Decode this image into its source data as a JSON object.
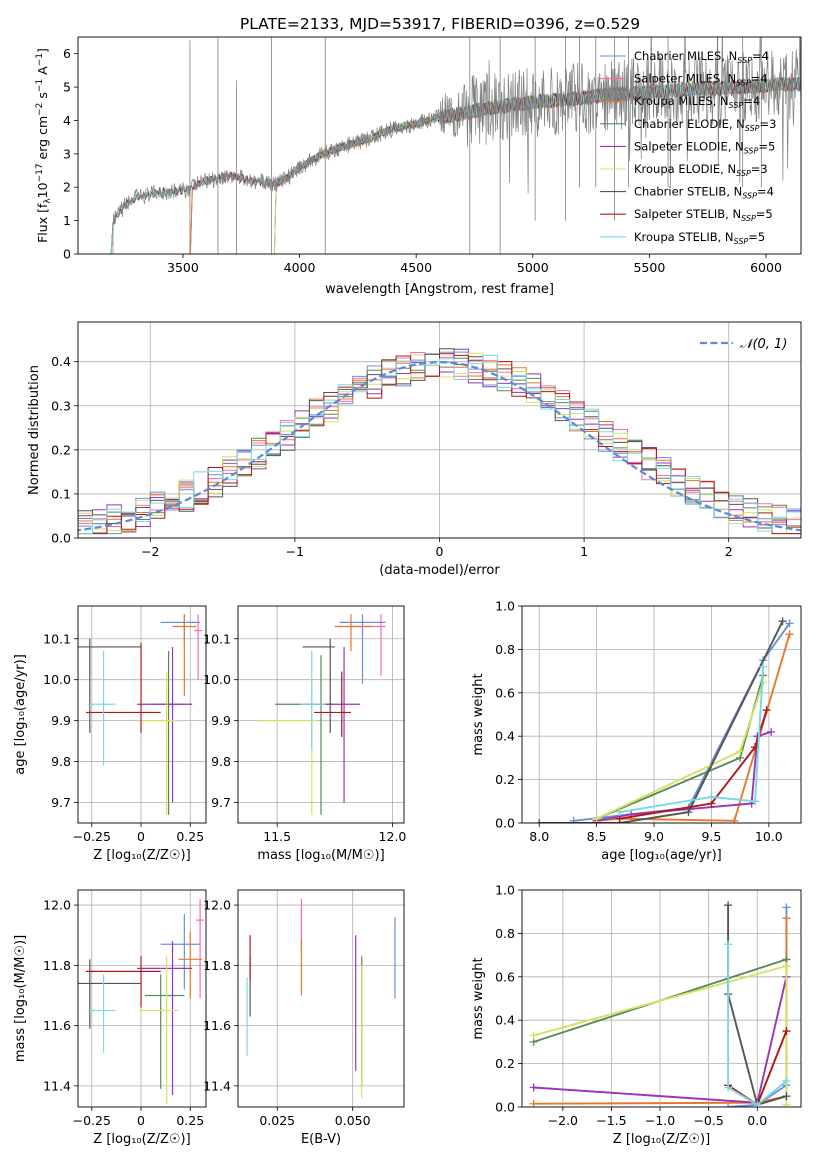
{
  "title": "PLATE=2133, MJD=53917, FIBERID=0396, z=0.529",
  "colors": {
    "Chabrier MILES": "#6a8fdc",
    "Salpeter MILES": "#ff69b4",
    "Kroupa MILES": "#e5782c",
    "Chabrier ELODIE": "#5a8a5a",
    "Salpeter ELODIE": "#9a35b8",
    "Kroupa ELODIE": "#d8e060",
    "Chabrier STELIB": "#555555",
    "Salpeter STELIB": "#b01818",
    "Kroupa STELIB": "#78d8e0",
    "data": "#808080",
    "normal": "#5a8ad8"
  },
  "chart_data": [
    {
      "id": "spectrum",
      "type": "line",
      "xlabel": "wavelength [Angstrom, rest frame]",
      "ylabel_parts": [
        "Flux [f",
        "λ",
        "10",
        "−17",
        " erg cm",
        "−2",
        " s",
        "−1",
        " A",
        "−1",
        "]"
      ],
      "xlim": [
        3050,
        6150
      ],
      "ylim": [
        0,
        6.5
      ],
      "xticks": [
        3500,
        4000,
        4500,
        5000,
        5500,
        6000
      ],
      "yticks": [
        0,
        1,
        2,
        3,
        4,
        5,
        6
      ],
      "legend_position": "upper right",
      "legend": [
        {
          "name": "Chabrier MILES",
          "n": 4
        },
        {
          "name": "Salpeter MILES",
          "n": 4
        },
        {
          "name": "Kroupa MILES",
          "n": 4
        },
        {
          "name": "Chabrier ELODIE",
          "n": 3
        },
        {
          "name": "Salpeter ELODIE",
          "n": 5
        },
        {
          "name": "Kroupa ELODIE",
          "n": 3
        },
        {
          "name": "Chabrier STELIB",
          "n": 4
        },
        {
          "name": "Salpeter STELIB",
          "n": 5
        },
        {
          "name": "Kroupa STELIB",
          "n": 5
        }
      ],
      "nssp_label": "N",
      "nssp_sub": "SSP",
      "model_starts": {
        "MILES": 3540,
        "ELODIE": 3900,
        "STELIB": 3200
      },
      "continuum": [
        [
          3200,
          0.95
        ],
        [
          3250,
          1.45
        ],
        [
          3300,
          1.7
        ],
        [
          3400,
          1.85
        ],
        [
          3500,
          1.9
        ],
        [
          3600,
          2.2
        ],
        [
          3700,
          2.35
        ],
        [
          3800,
          2.2
        ],
        [
          3900,
          2.1
        ],
        [
          3950,
          2.3
        ],
        [
          4000,
          2.6
        ],
        [
          4100,
          3.0
        ],
        [
          4200,
          3.25
        ],
        [
          4300,
          3.45
        ],
        [
          4400,
          3.75
        ],
        [
          4500,
          3.9
        ],
        [
          4600,
          4.1
        ],
        [
          4700,
          4.2
        ],
        [
          4800,
          4.35
        ],
        [
          4900,
          4.45
        ],
        [
          5000,
          4.55
        ],
        [
          5100,
          4.6
        ],
        [
          5200,
          4.65
        ],
        [
          5300,
          4.75
        ],
        [
          5400,
          4.8
        ],
        [
          5500,
          4.85
        ],
        [
          5600,
          4.9
        ],
        [
          5700,
          4.95
        ],
        [
          5800,
          4.95
        ],
        [
          5900,
          5.0
        ],
        [
          6000,
          5.05
        ],
        [
          6100,
          5.1
        ]
      ]
    },
    {
      "id": "residuals",
      "type": "histogram",
      "xlabel": "(data-model)/error",
      "ylabel": "Normed distribution",
      "xlim": [
        -2.5,
        2.5
      ],
      "ylim": [
        0,
        0.49
      ],
      "xticks": [
        -2,
        -1,
        0,
        1,
        2
      ],
      "yticks": [
        0.0,
        0.1,
        0.2,
        0.3,
        0.4
      ],
      "bin_width": 0.1,
      "legend_position": "upper right",
      "legend_label": "𝒩(0, 1)"
    },
    {
      "id": "age_vs_Z",
      "type": "scatter",
      "xlabel": "Z [log₁₀(Z/Z☉)]",
      "ylabel": "age  [log₁₀(age/yr)]",
      "xlim": [
        -0.32,
        0.33
      ],
      "ylim": [
        9.65,
        10.18
      ],
      "xticks": [
        -0.25,
        0.0,
        0.25
      ],
      "yticks": [
        9.7,
        9.8,
        9.9,
        10.0,
        10.1
      ],
      "points": [
        {
          "model": "Chabrier MILES",
          "x": 0.22,
          "y": 10.14,
          "xerr": [
            0.12,
            0.08
          ],
          "yerr": [
            0.05,
            0.02
          ]
        },
        {
          "model": "Salpeter MILES",
          "x": 0.29,
          "y": 10.12,
          "xerr": [
            0.02,
            0.02
          ],
          "yerr": [
            0.12,
            0.04
          ]
        },
        {
          "model": "Kroupa MILES",
          "x": 0.22,
          "y": 10.13,
          "xerr": [
            0.06,
            0.06
          ],
          "yerr": [
            0.17,
            0.03
          ]
        },
        {
          "model": "Chabrier ELODIE",
          "x": 0.14,
          "y": 9.94,
          "xerr": [
            0.08,
            0.08
          ],
          "yerr": [
            0.27,
            0.13
          ]
        },
        {
          "model": "Salpeter ELODIE",
          "x": 0.16,
          "y": 9.94,
          "xerr": [
            0.18,
            0.1
          ],
          "yerr": [
            0.24,
            0.14
          ]
        },
        {
          "model": "Kroupa ELODIE",
          "x": 0.13,
          "y": 9.9,
          "xerr": [
            0.14,
            0.06
          ],
          "yerr": [
            0.23,
            0.12
          ]
        },
        {
          "model": "Chabrier STELIB",
          "x": -0.26,
          "y": 10.08,
          "xerr": [
            0.1,
            0.26
          ],
          "yerr": [
            0.21,
            0.02
          ]
        },
        {
          "model": "Salpeter STELIB",
          "x": 0.0,
          "y": 9.92,
          "xerr": [
            0.28,
            0.1
          ],
          "yerr": [
            0.05,
            0.17
          ]
        },
        {
          "model": "Kroupa STELIB",
          "x": -0.19,
          "y": 9.94,
          "xerr": [
            0.08,
            0.06
          ],
          "yerr": [
            0.15,
            0.13
          ]
        }
      ]
    },
    {
      "id": "age_vs_mass",
      "type": "scatter",
      "xlabel": "mass [log₁₀(M/M☉)]",
      "ylabel": "",
      "xlim": [
        11.33,
        12.05
      ],
      "ylim": [
        9.65,
        10.18
      ],
      "xticks": [
        11.5,
        12.0
      ],
      "yticks": [
        9.7,
        9.8,
        9.9,
        10.0,
        10.1
      ],
      "points": [
        {
          "model": "Chabrier MILES",
          "x": 11.87,
          "y": 10.14,
          "xerr": [
            0.1,
            0.1
          ],
          "yerr": [
            0.15,
            0.02
          ]
        },
        {
          "model": "Salpeter MILES",
          "x": 11.95,
          "y": 10.13,
          "xerr": [
            0.13,
            0.02
          ],
          "yerr": [
            0.12,
            0.03
          ]
        },
        {
          "model": "Kroupa MILES",
          "x": 11.82,
          "y": 10.13,
          "xerr": [
            0.07,
            0.09
          ],
          "yerr": [
            0.06,
            0.03
          ]
        },
        {
          "model": "Chabrier ELODIE",
          "x": 11.69,
          "y": 9.94,
          "xerr": [
            0.2,
            0.05
          ],
          "yerr": [
            0.27,
            0.12
          ]
        },
        {
          "model": "Salpeter ELODIE",
          "x": 11.79,
          "y": 9.94,
          "xerr": [
            0.17,
            0.07
          ],
          "yerr": [
            0.24,
            0.14
          ]
        },
        {
          "model": "Kroupa ELODIE",
          "x": 11.65,
          "y": 9.9,
          "xerr": [
            0.23,
            0.02
          ],
          "yerr": [
            0.23,
            0.1
          ]
        },
        {
          "model": "Chabrier STELIB",
          "x": 11.73,
          "y": 10.08,
          "xerr": [
            0.12,
            0.02
          ],
          "yerr": [
            0.21,
            0.02
          ]
        },
        {
          "model": "Salpeter STELIB",
          "x": 11.78,
          "y": 9.92,
          "xerr": [
            0.12,
            0.04
          ],
          "yerr": [
            0.06,
            0.1
          ]
        },
        {
          "model": "Kroupa STELIB",
          "x": 11.65,
          "y": 9.94,
          "xerr": [
            0.05,
            0.06
          ],
          "yerr": [
            0.11,
            0.13
          ]
        }
      ]
    },
    {
      "id": "mass_weight_vs_age",
      "type": "line",
      "xlabel": "age  [log₁₀(age/yr)]",
      "ylabel": "mass weight",
      "xlim": [
        7.85,
        10.28
      ],
      "ylim": [
        0,
        1.0
      ],
      "xticks": [
        8.0,
        8.5,
        9.0,
        9.5,
        10.0
      ],
      "yticks": [
        0.0,
        0.2,
        0.4,
        0.6,
        0.8,
        1.0
      ],
      "series": [
        {
          "model": "Chabrier MILES",
          "x": [
            8.3,
            9.3,
            9.95,
            10.18
          ],
          "y": [
            0.01,
            0.07,
            0.75,
            0.92
          ]
        },
        {
          "model": "Kroupa MILES",
          "x": [
            8.5,
            8.7,
            9.7,
            10.18
          ],
          "y": [
            0.01,
            0.02,
            0.01,
            0.87
          ]
        },
        {
          "model": "Chabrier ELODIE",
          "x": [
            8.5,
            9.75,
            9.95
          ],
          "y": [
            0.02,
            0.3,
            0.68
          ]
        },
        {
          "model": "Salpeter ELODIE",
          "x": [
            8.5,
            8.8,
            9.85,
            9.9,
            10.02
          ],
          "y": [
            0.01,
            0.04,
            0.09,
            0.4,
            0.42
          ]
        },
        {
          "model": "Kroupa ELODIE",
          "x": [
            8.5,
            9.75,
            9.95
          ],
          "y": [
            0.02,
            0.33,
            0.65
          ]
        },
        {
          "model": "Chabrier STELIB",
          "x": [
            8.0,
            8.7,
            9.3,
            10.12
          ],
          "y": [
            0.0,
            0.0,
            0.05,
            0.93
          ]
        },
        {
          "model": "Salpeter STELIB",
          "x": [
            8.7,
            9.5,
            9.88,
            9.98
          ],
          "y": [
            0.02,
            0.09,
            0.35,
            0.52
          ]
        },
        {
          "model": "Kroupa STELIB",
          "x": [
            8.7,
            9.5,
            9.88,
            9.95
          ],
          "y": [
            0.05,
            0.12,
            0.1,
            0.72
          ]
        }
      ]
    },
    {
      "id": "mass_vs_Z",
      "type": "scatter",
      "xlabel": "Z [log₁₀(Z/Z☉)]",
      "ylabel": "mass [log₁₀(M/M☉)]",
      "xlim": [
        -0.32,
        0.33
      ],
      "ylim": [
        11.33,
        12.05
      ],
      "xticks": [
        -0.25,
        0.0,
        0.25
      ],
      "yticks": [
        11.4,
        11.6,
        11.8,
        12.0
      ],
      "points": [
        {
          "model": "Chabrier MILES",
          "x": 0.22,
          "y": 11.87,
          "xerr": [
            0.12,
            0.08
          ],
          "yerr": [
            0.15,
            0.1
          ]
        },
        {
          "model": "Salpeter MILES",
          "x": 0.3,
          "y": 11.95,
          "xerr": [
            0.02,
            0.02
          ],
          "yerr": [
            0.26,
            0.07
          ]
        },
        {
          "model": "Kroupa MILES",
          "x": 0.25,
          "y": 11.82,
          "xerr": [
            0.06,
            0.06
          ],
          "yerr": [
            0.13,
            0.09
          ]
        },
        {
          "model": "Chabrier ELODIE",
          "x": 0.1,
          "y": 11.7,
          "xerr": [
            0.08,
            0.12
          ],
          "yerr": [
            0.31,
            0.07
          ]
        },
        {
          "model": "Salpeter ELODIE",
          "x": 0.16,
          "y": 11.79,
          "xerr": [
            0.18,
            0.1
          ],
          "yerr": [
            0.42,
            0.09
          ]
        },
        {
          "model": "Kroupa ELODIE",
          "x": 0.13,
          "y": 11.65,
          "xerr": [
            0.14,
            0.06
          ],
          "yerr": [
            0.31,
            0.18
          ]
        },
        {
          "model": "Chabrier STELIB",
          "x": -0.26,
          "y": 11.74,
          "xerr": [
            0.1,
            0.26
          ],
          "yerr": [
            0.15,
            0.08
          ]
        },
        {
          "model": "Salpeter STELIB",
          "x": 0.0,
          "y": 11.78,
          "xerr": [
            0.28,
            0.1
          ],
          "yerr": [
            0.12,
            0.05
          ]
        },
        {
          "model": "Kroupa STELIB",
          "x": -0.19,
          "y": 11.65,
          "xerr": [
            0.08,
            0.06
          ],
          "yerr": [
            0.14,
            0.12
          ]
        }
      ]
    },
    {
      "id": "mass_vs_EBV",
      "type": "scatter",
      "xlabel": "E(B-V)",
      "ylabel": "",
      "xlim": [
        0.012,
        0.067
      ],
      "ylim": [
        11.33,
        12.05
      ],
      "xticks": [
        0.025,
        0.05
      ],
      "yticks": [
        11.4,
        11.6,
        11.8,
        12.0
      ],
      "points": [
        {
          "model": "Chabrier MILES",
          "x": 0.064,
          "y": 11.82,
          "yerr": [
            0.13,
            0.14
          ]
        },
        {
          "model": "Salpeter MILES",
          "x": 0.033,
          "y": 11.95,
          "yerr": [
            0.1,
            0.07
          ]
        },
        {
          "model": "Kroupa MILES",
          "x": 0.033,
          "y": 11.82,
          "yerr": [
            0.12,
            0.07
          ]
        },
        {
          "model": "Chabrier ELODIE",
          "x": 0.053,
          "y": 11.7,
          "yerr": [
            0.3,
            0.13
          ]
        },
        {
          "model": "Salpeter ELODIE",
          "x": 0.051,
          "y": 11.72,
          "yerr": [
            0.27,
            0.18
          ]
        },
        {
          "model": "Kroupa ELODIE",
          "x": 0.053,
          "y": 11.65,
          "yerr": [
            0.29,
            0.15
          ]
        },
        {
          "model": "Chabrier STELIB",
          "x": 0.016,
          "y": 11.73,
          "yerr": [
            0.1,
            0.1
          ]
        },
        {
          "model": "Salpeter STELIB",
          "x": 0.016,
          "y": 11.8,
          "yerr": [
            0.05,
            0.1
          ]
        },
        {
          "model": "Kroupa STELIB",
          "x": 0.015,
          "y": 11.62,
          "yerr": [
            0.12,
            0.14
          ]
        }
      ]
    },
    {
      "id": "mass_weight_vs_Z",
      "type": "line",
      "xlabel": "Z [log₁₀(Z/Z☉)]",
      "ylabel": "mass weight",
      "xlim": [
        -2.42,
        0.45
      ],
      "ylim": [
        0,
        1.0
      ],
      "xticks": [
        -2.0,
        -1.5,
        -1.0,
        -0.5,
        0.0
      ],
      "yticks": [
        0.0,
        0.2,
        0.4,
        0.6,
        0.8,
        1.0
      ],
      "series": [
        {
          "model": "Chabrier MILES",
          "x": [
            -0.3,
            0.0,
            0.3,
            0.3
          ],
          "y": [
            0.0,
            0.01,
            0.1,
            0.92
          ]
        },
        {
          "model": "Kroupa MILES",
          "x": [
            -2.3,
            0.0,
            0.3,
            0.3
          ],
          "y": [
            0.015,
            0.02,
            0.05,
            0.87
          ]
        },
        {
          "model": "Chabrier ELODIE",
          "x": [
            -2.3,
            0.3
          ],
          "y": [
            0.3,
            0.68
          ]
        },
        {
          "model": "Salpeter ELODIE",
          "x": [
            -2.3,
            0.0,
            0.3
          ],
          "y": [
            0.09,
            0.02,
            0.6
          ]
        },
        {
          "model": "Kroupa ELODIE",
          "x": [
            -2.3,
            0.3,
            0.3
          ],
          "y": [
            0.33,
            0.65,
            0.01
          ]
        },
        {
          "model": "Chabrier STELIB",
          "x": [
            -0.3,
            -0.3,
            0.0,
            0.3
          ],
          "y": [
            0.93,
            0.52,
            0.01,
            0.05
          ]
        },
        {
          "model": "Salpeter STELIB",
          "x": [
            -0.3,
            0.0,
            0.3
          ],
          "y": [
            0.1,
            0.01,
            0.35
          ]
        },
        {
          "model": "Kroupa STELIB",
          "x": [
            -0.3,
            -0.3,
            0.0,
            0.3
          ],
          "y": [
            0.75,
            0.09,
            0.01,
            0.12
          ]
        }
      ]
    }
  ]
}
